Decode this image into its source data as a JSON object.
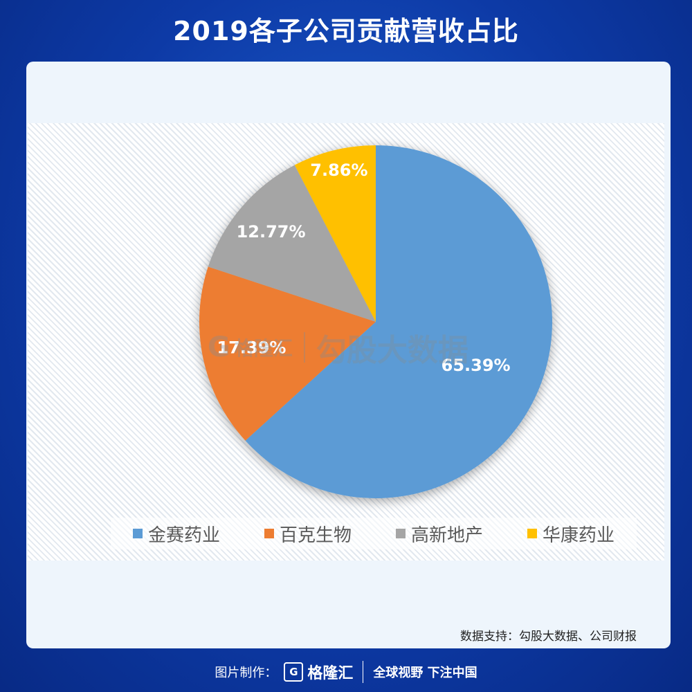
{
  "title": "2019各子公司贡献营收占比",
  "chart_data": {
    "type": "pie",
    "title": "2019各子公司贡献营收占比",
    "categories": [
      "金赛药业",
      "百克生物",
      "高新地产",
      "华康药业"
    ],
    "values": [
      65.39,
      17.39,
      12.77,
      7.86
    ],
    "labels": [
      "65.39%",
      "17.39%",
      "12.77%",
      "7.86%"
    ],
    "colors": [
      "#5b9bd5",
      "#ed7d31",
      "#a5a5a5",
      "#ffc000"
    ],
    "start_angle": "top",
    "direction": "clockwise",
    "legend_position": "bottom"
  },
  "watermark": {
    "logo": "G",
    "brand": "格隆汇",
    "text": "勾股大数据"
  },
  "source": "数据支持：勾股大数据、公司财报",
  "footer": {
    "label": "图片制作：",
    "logo": "G",
    "brand": "格隆汇",
    "slogan": "全球视野 下注中国"
  }
}
